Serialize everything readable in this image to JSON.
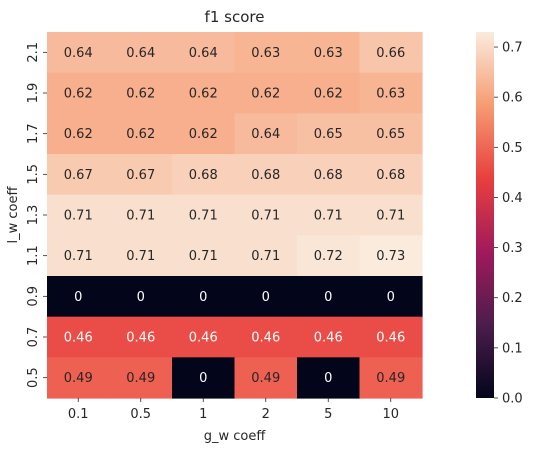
{
  "chart_data": {
    "type": "heatmap",
    "title": "f1 score",
    "xlabel": "g_w coeff",
    "ylabel": "l_w coeff",
    "x_categories": [
      "0.1",
      "0.5",
      "1",
      "2",
      "5",
      "10"
    ],
    "y_categories": [
      "2.1",
      "1.9",
      "1.7",
      "1.5",
      "1.3",
      "1.1",
      "0.9",
      "0.7",
      "0.5"
    ],
    "values": [
      [
        0.64,
        0.64,
        0.64,
        0.63,
        0.63,
        0.66
      ],
      [
        0.62,
        0.62,
        0.62,
        0.62,
        0.62,
        0.63
      ],
      [
        0.62,
        0.62,
        0.62,
        0.64,
        0.65,
        0.65
      ],
      [
        0.67,
        0.67,
        0.68,
        0.68,
        0.68,
        0.68
      ],
      [
        0.71,
        0.71,
        0.71,
        0.71,
        0.71,
        0.71
      ],
      [
        0.71,
        0.71,
        0.71,
        0.71,
        0.72,
        0.73
      ],
      [
        0,
        0,
        0,
        0,
        0,
        0
      ],
      [
        0.46,
        0.46,
        0.46,
        0.46,
        0.46,
        0.46
      ],
      [
        0.49,
        0.49,
        0,
        0.49,
        0,
        0.49
      ]
    ],
    "value_labels": [
      [
        "0.64",
        "0.64",
        "0.64",
        "0.63",
        "0.63",
        "0.66"
      ],
      [
        "0.62",
        "0.62",
        "0.62",
        "0.62",
        "0.62",
        "0.63"
      ],
      [
        "0.62",
        "0.62",
        "0.62",
        "0.64",
        "0.65",
        "0.65"
      ],
      [
        "0.67",
        "0.67",
        "0.68",
        "0.68",
        "0.68",
        "0.68"
      ],
      [
        "0.71",
        "0.71",
        "0.71",
        "0.71",
        "0.71",
        "0.71"
      ],
      [
        "0.71",
        "0.71",
        "0.71",
        "0.71",
        "0.72",
        "0.73"
      ],
      [
        "0",
        "0",
        "0",
        "0",
        "0",
        "0"
      ],
      [
        "0.46",
        "0.46",
        "0.46",
        "0.46",
        "0.46",
        "0.46"
      ],
      [
        "0.49",
        "0.49",
        "0",
        "0.49",
        "0",
        "0.49"
      ]
    ],
    "colorbar": {
      "range": [
        0,
        0.73
      ],
      "ticks": [
        0.0,
        0.1,
        0.2,
        0.3,
        0.4,
        0.5,
        0.6,
        0.7
      ],
      "tick_labels": [
        "0.0",
        "0.1",
        "0.2",
        "0.3",
        "0.4",
        "0.5",
        "0.6",
        "0.7"
      ]
    },
    "colormap": "rocket",
    "colormap_stops": [
      "#03051a",
      "#4c1d4b",
      "#a11a5b",
      "#e83f3f",
      "#f69c73",
      "#faebdd"
    ]
  }
}
